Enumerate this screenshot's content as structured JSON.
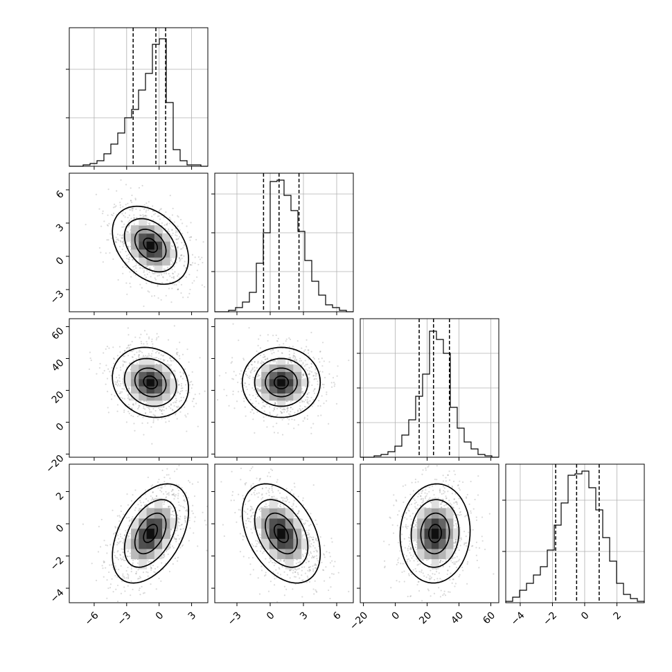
{
  "chart_data": {
    "type": "scatter",
    "title": "",
    "n_params": 4,
    "grid": true,
    "params": [
      {
        "ticks": [
          -6,
          -3,
          0,
          3
        ],
        "tick_labels": [
          "−6",
          "−3",
          "0",
          "3"
        ],
        "range": [
          -8.3,
          4.5
        ],
        "mean": -0.8,
        "sigma": 1.6,
        "quantiles": [
          -2.4,
          -0.3,
          0.6
        ]
      },
      {
        "ticks": [
          -3,
          0,
          3,
          6
        ],
        "tick_labels": [
          "−3",
          "0",
          "3",
          "6"
        ],
        "range": [
          -5,
          7.5
        ],
        "mean": 1.0,
        "sigma": 1.6,
        "quantiles": [
          -0.6,
          0.8,
          2.6
        ]
      },
      {
        "ticks": [
          -20,
          0,
          20,
          40,
          60
        ],
        "tick_labels": [
          "−20",
          "0",
          "20",
          "40",
          "60"
        ],
        "range": [
          -22,
          65
        ],
        "mean": 25,
        "sigma": 10,
        "quantiles": [
          15,
          24,
          34
        ]
      },
      {
        "ticks": [
          -4,
          -2,
          0,
          2
        ],
        "tick_labels": [
          "−4",
          "−2",
          "0",
          "2"
        ],
        "range": [
          -4.9,
          3.7
        ],
        "mean": -0.6,
        "sigma": 1.4,
        "quantiles": [
          -1.8,
          -0.5,
          0.9
        ]
      }
    ],
    "histograms": [
      {
        "param": 0,
        "edges": [
          -8.3,
          -7.66,
          -7.02,
          -6.38,
          -5.74,
          -5.1,
          -4.46,
          -3.82,
          -3.18,
          -2.54,
          -1.9,
          -1.26,
          -0.62,
          0.02,
          0.66,
          1.3,
          1.94,
          2.58,
          3.22,
          3.86,
          4.5
        ],
        "counts": [
          0,
          0,
          0.01,
          0.02,
          0.04,
          0.09,
          0.16,
          0.24,
          0.35,
          0.41,
          0.55,
          0.67,
          0.88,
          0.92,
          0.46,
          0.12,
          0.04,
          0.01,
          0.01,
          0
        ],
        "ylim": [
          0,
          1.0
        ],
        "yticks": [
          0.35,
          0.7
        ]
      },
      {
        "param": 1,
        "edges": [
          -5,
          -4.375,
          -3.75,
          -3.125,
          -2.5,
          -1.875,
          -1.25,
          -0.625,
          0,
          0.625,
          1.25,
          1.875,
          2.5,
          3.125,
          3.75,
          4.375,
          5,
          5.625,
          6.25,
          6.875,
          7.5
        ],
        "counts": [
          0,
          0,
          0.01,
          0.03,
          0.07,
          0.14,
          0.35,
          0.57,
          0.94,
          0.95,
          0.84,
          0.73,
          0.58,
          0.37,
          0.22,
          0.12,
          0.05,
          0.03,
          0.01,
          0
        ],
        "ylim": [
          0,
          1.0
        ],
        "yticks": [
          0.29,
          0.57,
          0.85
        ]
      },
      {
        "param": 2,
        "edges": [
          -22,
          -17.65,
          -13.3,
          -8.95,
          -4.6,
          -0.25,
          4.1,
          8.45,
          12.8,
          17.15,
          21.5,
          25.85,
          30.2,
          34.55,
          38.9,
          43.25,
          47.6,
          51.95,
          56.3,
          60.65,
          65
        ],
        "counts": [
          0,
          0,
          0.01,
          0.02,
          0.04,
          0.08,
          0.16,
          0.27,
          0.44,
          0.6,
          0.91,
          0.85,
          0.75,
          0.36,
          0.21,
          0.11,
          0.06,
          0.02,
          0.01,
          0
        ],
        "ylim": [
          0,
          1.0
        ],
        "yticks": [
          0.25,
          0.5,
          0.75
        ]
      },
      {
        "param": 3,
        "edges": [
          -4.9,
          -4.47,
          -4.04,
          -3.61,
          -3.18,
          -2.75,
          -2.32,
          -1.89,
          -1.46,
          -1.03,
          -0.6,
          -0.17,
          0.26,
          0.69,
          1.12,
          1.55,
          1.98,
          2.41,
          2.84,
          3.27,
          3.7
        ],
        "counts": [
          0.01,
          0.04,
          0.09,
          0.14,
          0.2,
          0.26,
          0.38,
          0.56,
          0.72,
          0.92,
          0.93,
          0.95,
          0.83,
          0.67,
          0.47,
          0.3,
          0.14,
          0.06,
          0.03,
          0.01
        ],
        "ylim": [
          0,
          1.0
        ],
        "yticks": [
          0.37,
          0.74
        ]
      }
    ],
    "pairs": [
      {
        "x": 0,
        "y": 1,
        "rho": -0.35,
        "levels": [
          0.4,
          0.9,
          1.5,
          2.2
        ]
      },
      {
        "x": 0,
        "y": 2,
        "rho": -0.15,
        "levels": [
          0.4,
          0.9,
          1.5,
          2.2
        ]
      },
      {
        "x": 1,
        "y": 2,
        "rho": 0.0,
        "levels": [
          0.4,
          0.9,
          1.5,
          2.2
        ]
      },
      {
        "x": 0,
        "y": 3,
        "rho": 0.45,
        "levels": [
          0.4,
          0.9,
          1.5,
          2.2
        ]
      },
      {
        "x": 1,
        "y": 3,
        "rho": -0.4,
        "levels": [
          0.4,
          0.9,
          1.5,
          2.2
        ]
      },
      {
        "x": 2,
        "y": 3,
        "rho": 0.05,
        "levels": [
          0.4,
          0.9,
          1.5,
          2.2
        ]
      }
    ]
  }
}
